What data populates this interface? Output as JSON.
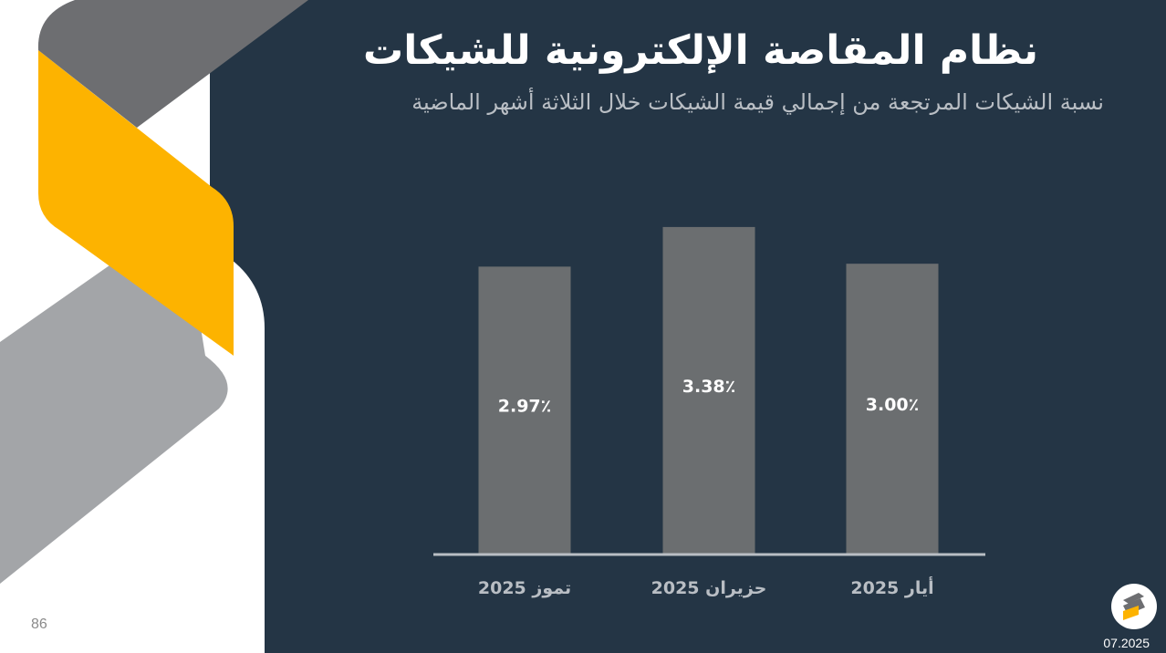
{
  "slide": {
    "title": "نظام المقاصة الإلكترونية للشيكات",
    "subtitle": "نسبة الشيكات المرتجعة من إجمالي قيمة الشيكات خلال الثلاثة أشهر الماضية",
    "page_number": "86",
    "date_code": "07.2025"
  },
  "colors": {
    "background_dark": "#243545",
    "bar": "#6b6e70",
    "accent_yellow": "#fdb300",
    "ribbon_gray_dark": "#6d6e71",
    "ribbon_gray_light": "#a3a5a8",
    "axis": "#b9bec4"
  },
  "icons": {
    "logo": "company-logo-icon"
  },
  "chart_data": {
    "type": "bar",
    "categories": [
      "تموز 2025",
      "حزيران 2025",
      "أيار 2025"
    ],
    "values": [
      2.97,
      3.38,
      3.0
    ],
    "data_labels": [
      "2.97٪",
      "3.38٪",
      "3.00٪"
    ],
    "title": "",
    "xlabel": "",
    "ylabel": "",
    "ylim": [
      0,
      3.7
    ],
    "grid": false,
    "legend": "none"
  }
}
